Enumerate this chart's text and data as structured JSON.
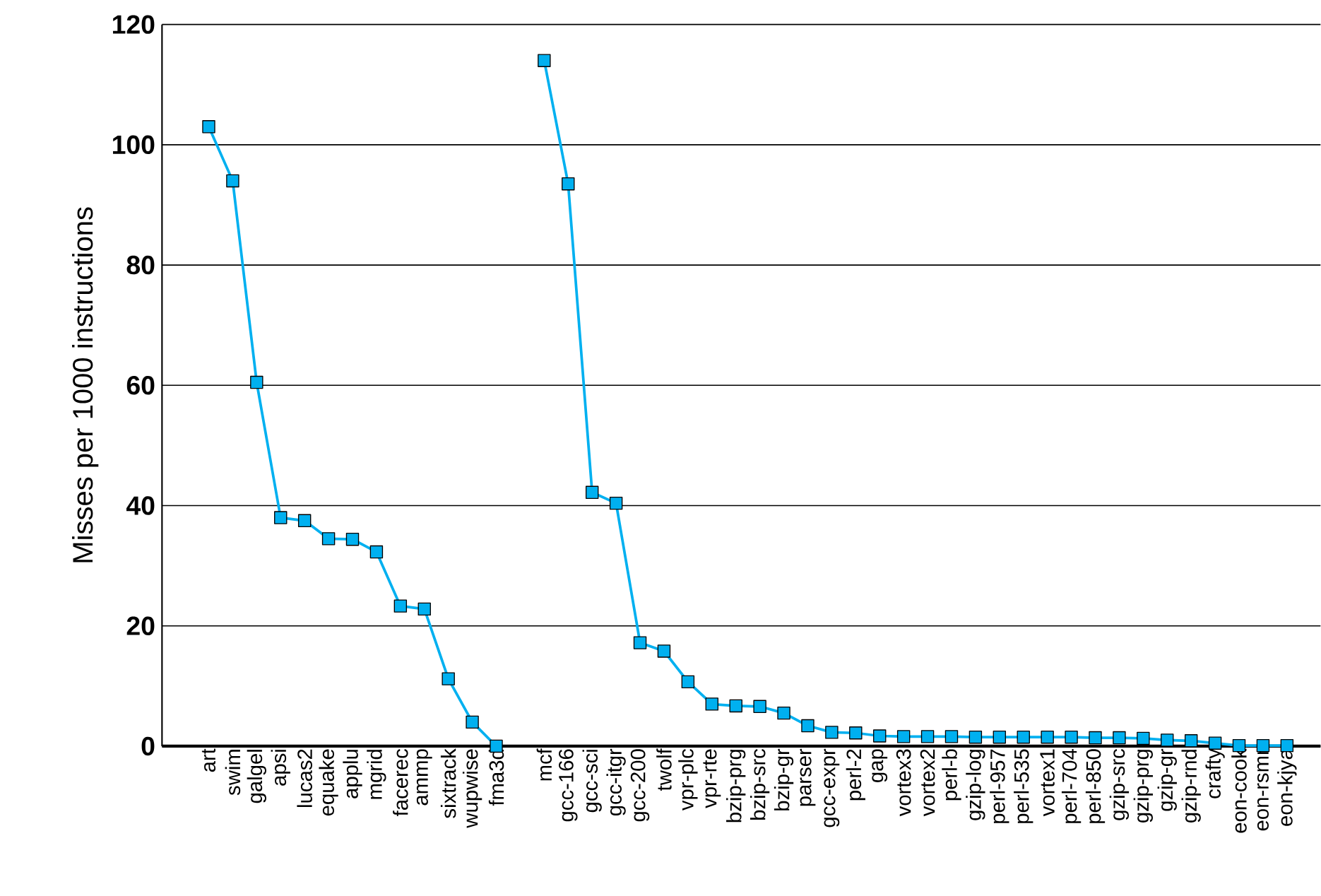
{
  "chart_data": {
    "type": "line",
    "ylabel": "Misses per 1000 instructions",
    "categories": [
      "art",
      "swim",
      "galgel",
      "apsi",
      "lucas2",
      "equake",
      "applu",
      "mgrid",
      "facerec",
      "ammp",
      "sixtrack",
      "wupwise",
      "fma3d",
      null,
      "mcf",
      "gcc-166",
      "gcc-sci",
      "gcc-itgr",
      "gcc-200",
      "twolf",
      "vpr-plc",
      "vpr-rte",
      "bzip-prg",
      "bzip-src",
      "bzip-gr",
      "parser",
      "gcc-expr",
      "perl-2",
      "gap",
      "vortex3",
      "vortex2",
      "perl-b",
      "gzip-log",
      "perl-957",
      "perl-535",
      "vortex1",
      "perl-704",
      "perl-850",
      "gzip-src",
      "gzip-prg",
      "gzip-gr",
      "gzip-rnd",
      "crafty",
      "eon-cook",
      "eon-rsmr",
      "eon-kjya"
    ],
    "series": [
      {
        "color": "#00b0f0",
        "values": [
          103,
          94,
          60.5,
          38,
          37.5,
          34.5,
          34.4,
          32.3,
          23.3,
          22.8,
          11.2,
          4,
          0,
          null,
          114,
          93.5,
          42.2,
          40.4,
          17.2,
          15.8,
          10.7,
          7,
          6.7,
          6.6,
          5.5,
          3.4,
          2.3,
          2.2,
          1.7,
          1.6,
          1.6,
          1.6,
          1.5,
          1.5,
          1.5,
          1.5,
          1.5,
          1.4,
          1.4,
          1.3,
          1.0,
          0.9,
          0.5,
          0.1,
          0.1,
          0.1
        ]
      }
    ],
    "ylim": [
      0,
      120
    ],
    "yticks": [
      0,
      20,
      40,
      60,
      80,
      100,
      120
    ],
    "grid": "y",
    "marker": "square",
    "line_style": "solid"
  }
}
